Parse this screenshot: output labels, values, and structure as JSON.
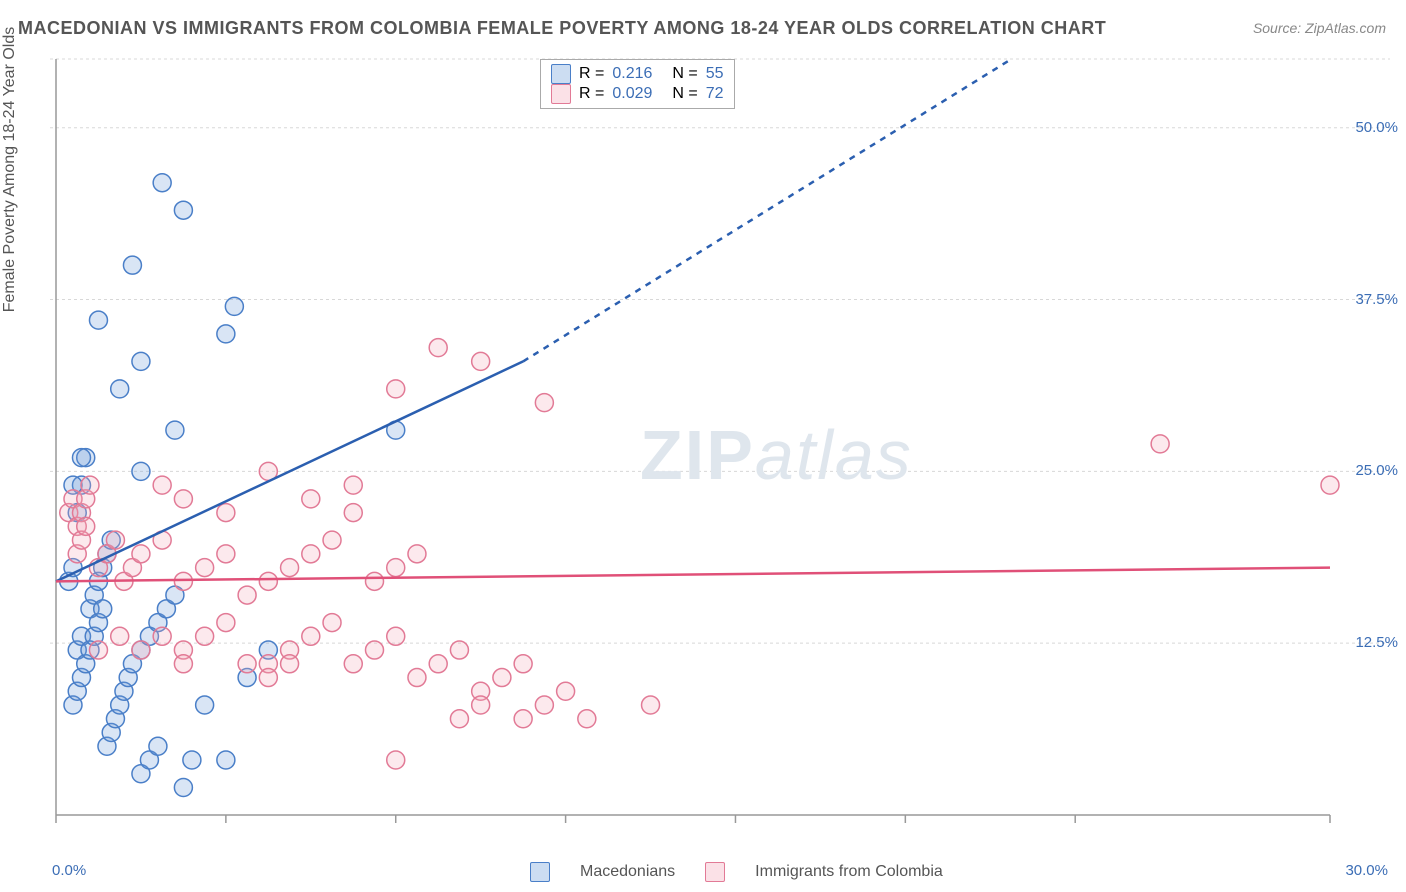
{
  "title": "MACEDONIAN VS IMMIGRANTS FROM COLOMBIA FEMALE POVERTY AMONG 18-24 YEAR OLDS CORRELATION CHART",
  "source": "Source: ZipAtlas.com",
  "ylabel": "Female Poverty Among 18-24 Year Olds",
  "watermark_zip": "ZIP",
  "watermark_atlas": "atlas",
  "chart": {
    "type": "scatter",
    "background_color": "#ffffff",
    "grid_color": "#d8d8d8",
    "grid_dash": "3,3",
    "axis_color": "#999999",
    "xlim": [
      0,
      30
    ],
    "ylim": [
      0,
      55
    ],
    "xticks": [
      0,
      4,
      8,
      12,
      16,
      20,
      24,
      30
    ],
    "yticks": [
      12.5,
      25.0,
      37.5,
      50.0
    ],
    "xlabel_min": "0.0%",
    "xlabel_max": "30.0%",
    "ytick_labels": [
      "12.5%",
      "25.0%",
      "37.5%",
      "50.0%"
    ],
    "marker_radius": 9,
    "marker_stroke_width": 1.5,
    "marker_fill_opacity": 0.25,
    "series": [
      {
        "name": "Macedonians",
        "color": "#6699d8",
        "stroke": "#4a7fc8",
        "r_label": "R =",
        "r_value": "0.216",
        "n_label": "N =",
        "n_value": "55",
        "trend": {
          "solid_from": [
            0,
            17
          ],
          "solid_to": [
            11,
            33
          ],
          "dash_from": [
            11,
            33
          ],
          "dash_to": [
            22.5,
            55
          ],
          "line_color": "#2b5fb0",
          "line_width": 2.5
        },
        "points": [
          [
            0.3,
            17
          ],
          [
            0.4,
            18
          ],
          [
            0.5,
            22
          ],
          [
            0.6,
            24
          ],
          [
            0.7,
            26
          ],
          [
            0.5,
            12
          ],
          [
            0.6,
            13
          ],
          [
            0.8,
            15
          ],
          [
            0.9,
            16
          ],
          [
            1.0,
            17
          ],
          [
            1.1,
            18
          ],
          [
            1.2,
            19
          ],
          [
            1.3,
            20
          ],
          [
            0.4,
            8
          ],
          [
            0.5,
            9
          ],
          [
            0.6,
            10
          ],
          [
            0.7,
            11
          ],
          [
            0.8,
            12
          ],
          [
            0.9,
            13
          ],
          [
            1.0,
            14
          ],
          [
            1.1,
            15
          ],
          [
            1.2,
            5
          ],
          [
            1.3,
            6
          ],
          [
            1.4,
            7
          ],
          [
            1.5,
            8
          ],
          [
            1.6,
            9
          ],
          [
            1.7,
            10
          ],
          [
            1.8,
            11
          ],
          [
            2.0,
            12
          ],
          [
            2.2,
            13
          ],
          [
            2.4,
            14
          ],
          [
            2.6,
            15
          ],
          [
            2.8,
            16
          ],
          [
            2.0,
            3
          ],
          [
            2.2,
            4
          ],
          [
            2.4,
            5
          ],
          [
            3.0,
            2
          ],
          [
            3.2,
            4
          ],
          [
            1.0,
            36
          ],
          [
            1.8,
            40
          ],
          [
            3.0,
            44
          ],
          [
            2.5,
            46
          ],
          [
            4.0,
            35
          ],
          [
            4.2,
            37
          ],
          [
            1.5,
            31
          ],
          [
            2.0,
            33
          ],
          [
            2.0,
            25
          ],
          [
            2.8,
            28
          ],
          [
            0.4,
            24
          ],
          [
            0.6,
            26
          ],
          [
            4.5,
            10
          ],
          [
            5.0,
            12
          ],
          [
            3.5,
            8
          ],
          [
            4.0,
            4
          ],
          [
            8.0,
            28
          ]
        ]
      },
      {
        "name": "Immigrants from Colombia",
        "color": "#f4a6b8",
        "stroke": "#e27a96",
        "r_label": "R =",
        "r_value": "0.029",
        "n_label": "N =",
        "n_value": "72",
        "trend": {
          "solid_from": [
            0,
            17
          ],
          "solid_to": [
            30,
            18
          ],
          "line_color": "#e05078",
          "line_width": 2.5
        },
        "points": [
          [
            0.3,
            22
          ],
          [
            0.4,
            23
          ],
          [
            0.5,
            21
          ],
          [
            0.6,
            22
          ],
          [
            0.7,
            23
          ],
          [
            0.8,
            24
          ],
          [
            0.5,
            19
          ],
          [
            0.6,
            20
          ],
          [
            0.7,
            21
          ],
          [
            1.0,
            18
          ],
          [
            1.2,
            19
          ],
          [
            1.4,
            20
          ],
          [
            1.6,
            17
          ],
          [
            1.8,
            18
          ],
          [
            2.0,
            19
          ],
          [
            2.5,
            20
          ],
          [
            3.0,
            17
          ],
          [
            3.5,
            18
          ],
          [
            4.0,
            19
          ],
          [
            4.5,
            16
          ],
          [
            5.0,
            17
          ],
          [
            5.5,
            18
          ],
          [
            6.0,
            19
          ],
          [
            6.5,
            20
          ],
          [
            7.0,
            24
          ],
          [
            7.5,
            17
          ],
          [
            8.0,
            18
          ],
          [
            8.5,
            19
          ],
          [
            5.0,
            11
          ],
          [
            5.5,
            12
          ],
          [
            6.0,
            13
          ],
          [
            6.5,
            14
          ],
          [
            7.0,
            11
          ],
          [
            7.5,
            12
          ],
          [
            8.0,
            13
          ],
          [
            8.5,
            10
          ],
          [
            9.0,
            11
          ],
          [
            9.5,
            12
          ],
          [
            10.0,
            9
          ],
          [
            10.5,
            10
          ],
          [
            11.0,
            11
          ],
          [
            11.5,
            8
          ],
          [
            12.0,
            9
          ],
          [
            8.0,
            4
          ],
          [
            9.5,
            7
          ],
          [
            10.0,
            8
          ],
          [
            11.0,
            7
          ],
          [
            12.5,
            7
          ],
          [
            14.0,
            8
          ],
          [
            3.0,
            12
          ],
          [
            3.5,
            13
          ],
          [
            4.0,
            14
          ],
          [
            4.5,
            11
          ],
          [
            5.0,
            10
          ],
          [
            5.5,
            11
          ],
          [
            2.0,
            12
          ],
          [
            2.5,
            13
          ],
          [
            3.0,
            11
          ],
          [
            10.0,
            33
          ],
          [
            11.5,
            30
          ],
          [
            9.0,
            34
          ],
          [
            8.0,
            31
          ],
          [
            26.0,
            27
          ],
          [
            30.0,
            24
          ],
          [
            6.0,
            23
          ],
          [
            7.0,
            22
          ],
          [
            5.0,
            25
          ],
          [
            4.0,
            22
          ],
          [
            3.0,
            23
          ],
          [
            2.5,
            24
          ],
          [
            1.5,
            13
          ],
          [
            1.0,
            12
          ]
        ]
      }
    ]
  },
  "legend_bottom": {
    "series1": "Macedonians",
    "series2": "Immigrants from Colombia"
  }
}
